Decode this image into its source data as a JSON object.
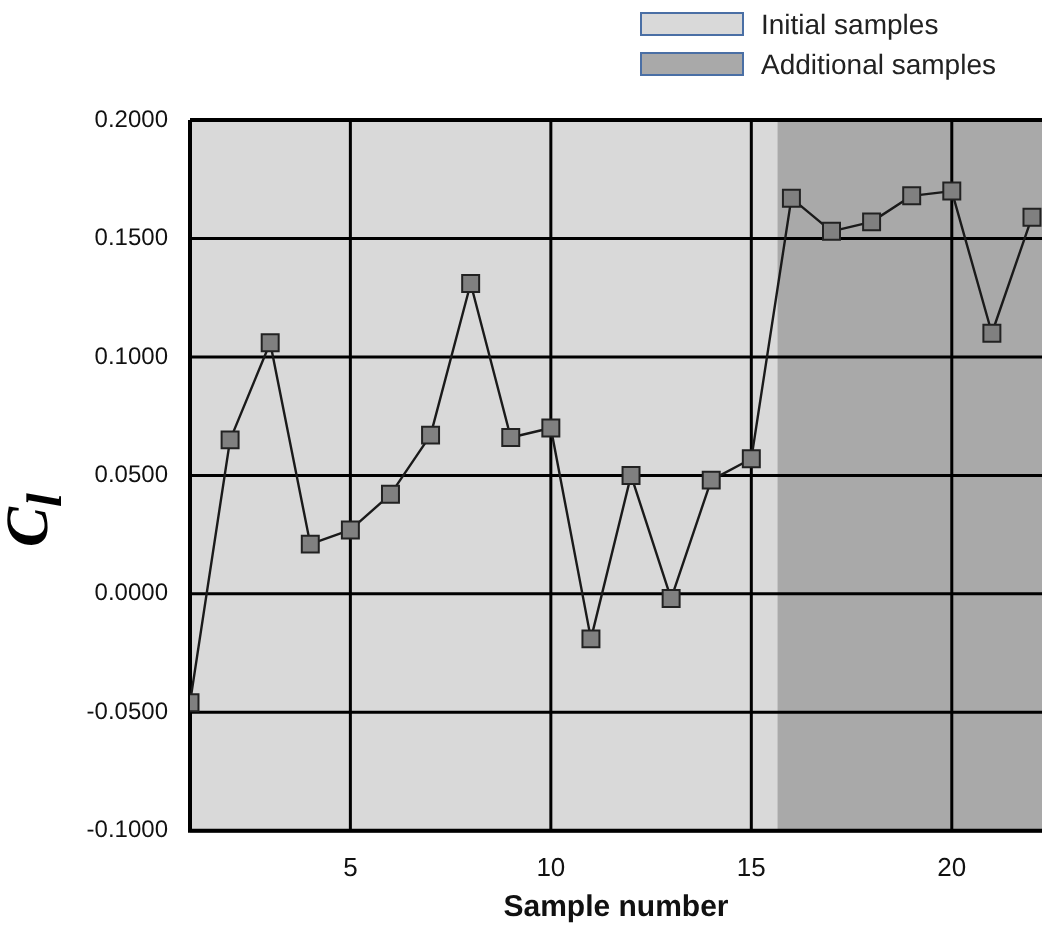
{
  "chart_data": {
    "type": "line",
    "xlabel": "Sample number",
    "ylabel": "C$_{l}$",
    "x": [
      1,
      2,
      3,
      4,
      5,
      6,
      7,
      8,
      9,
      10,
      11,
      12,
      13,
      14,
      15,
      16,
      17,
      18,
      19,
      20,
      21,
      22
    ],
    "series": [
      {
        "color": "#808080",
        "values": [
          -0.046,
          0.065,
          0.106,
          0.021,
          0.027,
          0.042,
          0.067,
          0.131,
          0.066,
          0.07,
          -0.019,
          0.05,
          -0.002,
          0.048,
          0.057,
          0.167,
          0.153,
          0.157,
          0.168,
          0.17,
          0.11,
          0.159
        ]
      }
    ],
    "xlim": [
      1,
      22.25
    ],
    "xticks": [
      5,
      10,
      15,
      20
    ],
    "ylim": [
      -0.1,
      0.2
    ],
    "yticks": [
      {
        "value": -0.1,
        "label": "-0.1000"
      },
      {
        "value": -0.05,
        "label": "-0.0500"
      },
      {
        "value": 0,
        "label": "0.0000"
      },
      {
        "value": 0.05,
        "label": "0.0500"
      },
      {
        "value": 0.1,
        "label": "0.1000"
      },
      {
        "value": 0.15,
        "label": "0.1500"
      },
      {
        "value": 0.2,
        "label": "0.2000"
      }
    ],
    "bands": [
      {
        "axis": "x",
        "from": 1,
        "to": 15.65,
        "label": "Initial samples",
        "color": "#d9d9d9"
      },
      {
        "axis": "x",
        "from": 15.65,
        "to": 22.25,
        "label": "Additional samples",
        "color": "#a9a9a9"
      }
    ],
    "grid": true,
    "marker": "square",
    "line_style": "solid",
    "legend": "top right"
  }
}
